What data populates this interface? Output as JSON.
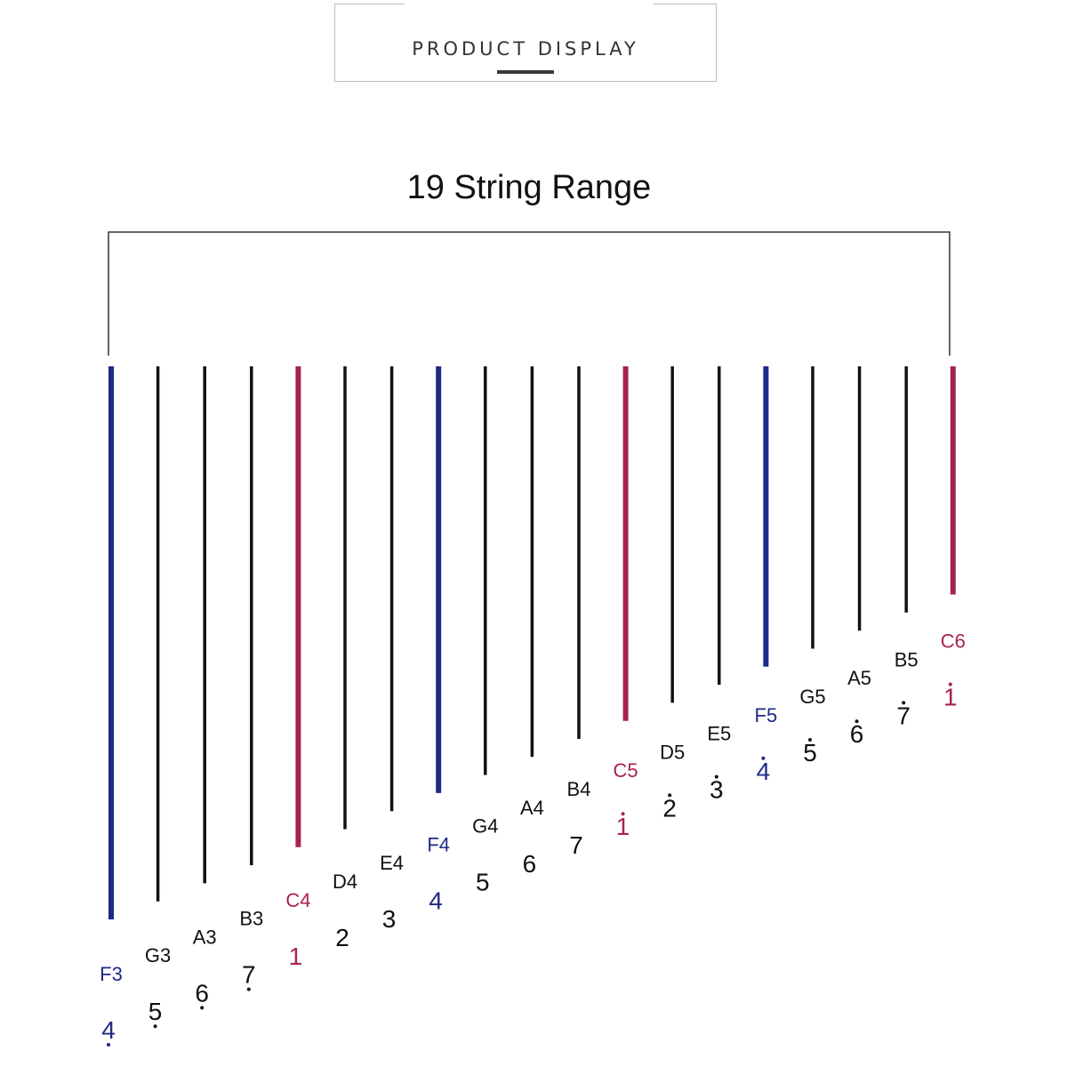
{
  "header": {
    "title": "PRODUCT DISPLAY"
  },
  "diagram": {
    "title": "19 String Range"
  },
  "colors": {
    "blue": "#1f2a86",
    "red": "#a8234f",
    "black": "#111111"
  },
  "strings": [
    {
      "note": "F3",
      "digit": "4",
      "octave": "low",
      "color": "blue"
    },
    {
      "note": "G3",
      "digit": "5",
      "octave": "low",
      "color": "black"
    },
    {
      "note": "A3",
      "digit": "6",
      "octave": "low",
      "color": "black"
    },
    {
      "note": "B3",
      "digit": "7",
      "octave": "low",
      "color": "black"
    },
    {
      "note": "C4",
      "digit": "1",
      "octave": "mid",
      "color": "red"
    },
    {
      "note": "D4",
      "digit": "2",
      "octave": "mid",
      "color": "black"
    },
    {
      "note": "E4",
      "digit": "3",
      "octave": "mid",
      "color": "black"
    },
    {
      "note": "F4",
      "digit": "4",
      "octave": "mid",
      "color": "blue"
    },
    {
      "note": "G4",
      "digit": "5",
      "octave": "mid",
      "color": "black"
    },
    {
      "note": "A4",
      "digit": "6",
      "octave": "mid",
      "color": "black"
    },
    {
      "note": "B4",
      "digit": "7",
      "octave": "mid",
      "color": "black"
    },
    {
      "note": "C5",
      "digit": "1",
      "octave": "high",
      "color": "red"
    },
    {
      "note": "D5",
      "digit": "2",
      "octave": "high",
      "color": "black"
    },
    {
      "note": "E5",
      "digit": "3",
      "octave": "high",
      "color": "black"
    },
    {
      "note": "F5",
      "digit": "4",
      "octave": "high",
      "color": "blue"
    },
    {
      "note": "G5",
      "digit": "5",
      "octave": "high",
      "color": "black"
    },
    {
      "note": "A5",
      "digit": "6",
      "octave": "high",
      "color": "black"
    },
    {
      "note": "B5",
      "digit": "7",
      "octave": "high",
      "color": "black"
    },
    {
      "note": "C6",
      "digit": "1",
      "octave": "top",
      "color": "red"
    }
  ]
}
